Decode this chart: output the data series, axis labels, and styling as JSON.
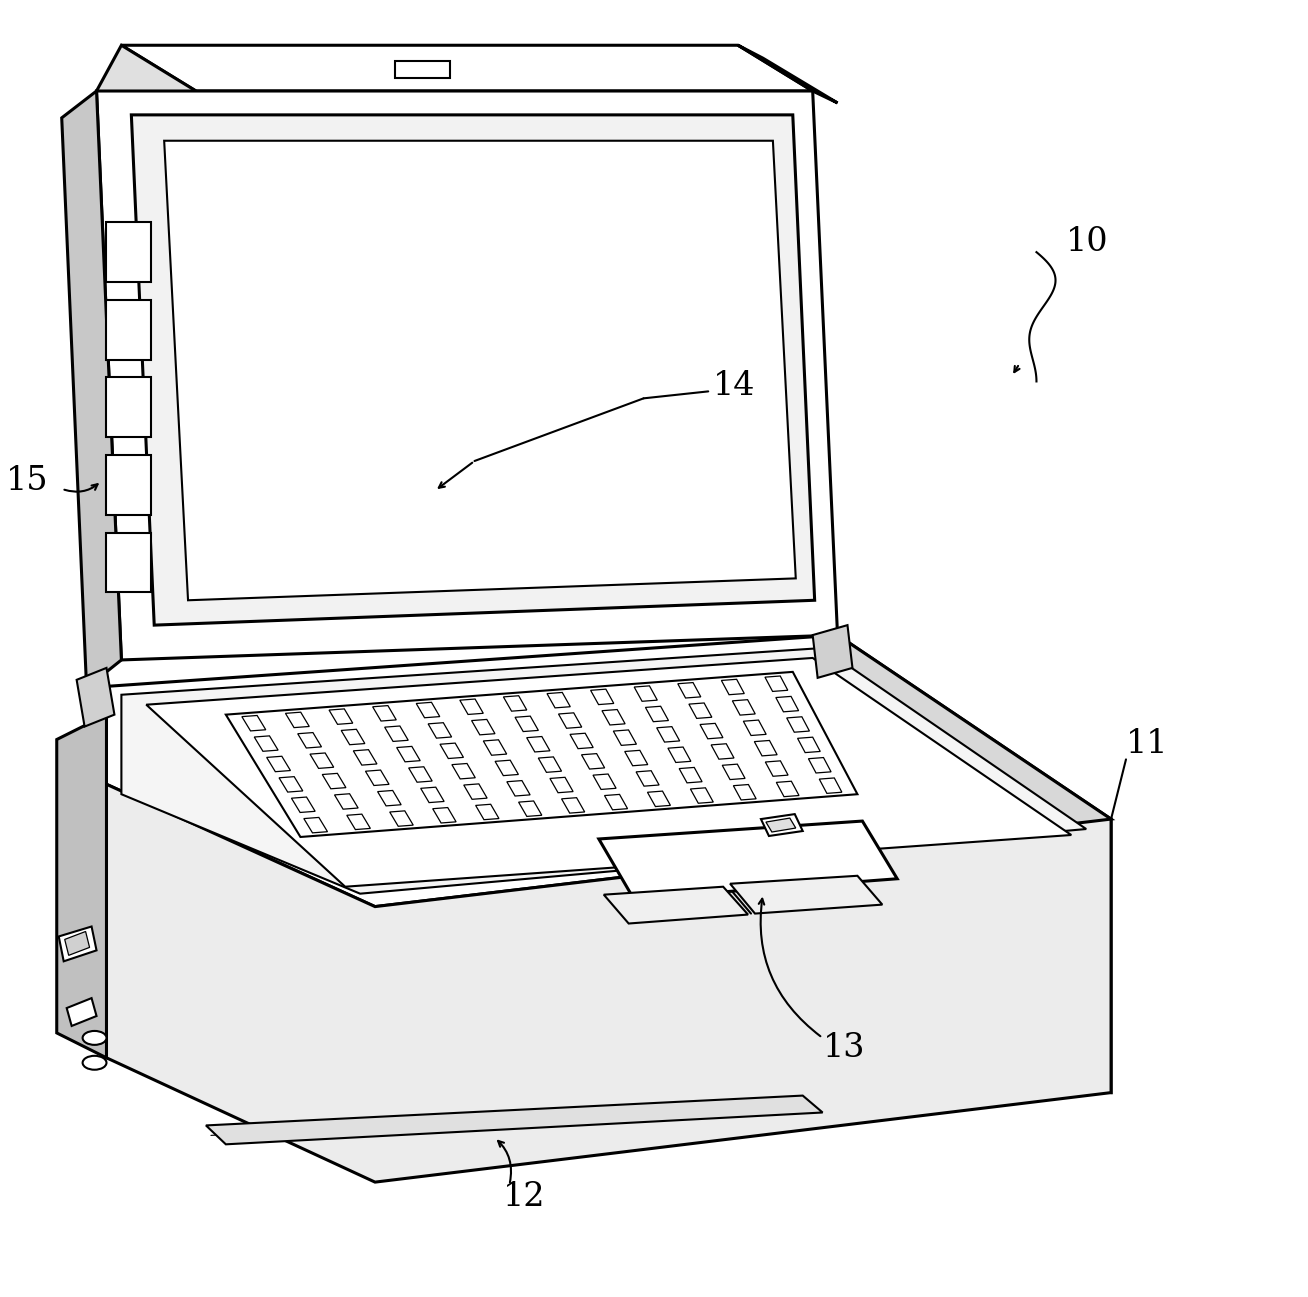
{
  "bg_color": "#ffffff",
  "lc": "#000000",
  "lw": 2.2,
  "tlw": 1.5,
  "flw": 0.9,
  "label_fs": 24
}
